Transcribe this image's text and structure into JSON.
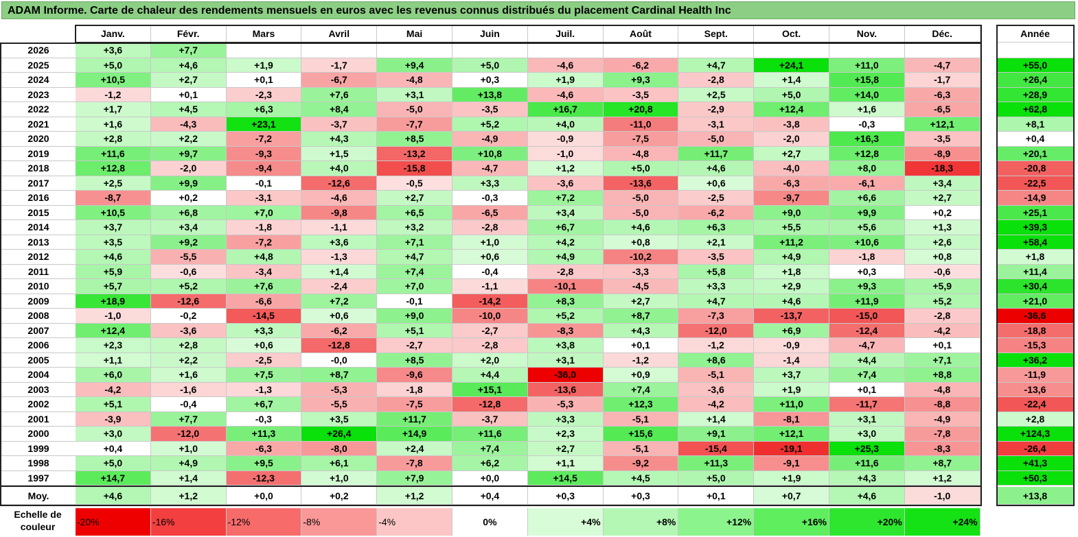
{
  "title": "ADAM Informe. Carte de chaleur des rendements mensuels en euros avec les revenus connus distribués du placement Cardinal Health Inc",
  "chart_data": {
    "type": "heatmap",
    "title": "ADAM Informe. Carte de chaleur des rendements mensuels en euros avec les revenus connus distribués du placement Cardinal Health Inc",
    "columns": [
      "Janv.",
      "Févr.",
      "Mars",
      "Avril",
      "Mai",
      "Juin",
      "Juil.",
      "Août",
      "Sept.",
      "Oct.",
      "Nov.",
      "Déc."
    ],
    "year_column_label": "Année",
    "rows": [
      {
        "year": "2026",
        "values": [
          "+3,6",
          "+7,7",
          "",
          "",
          "",
          "",
          "",
          "",
          "",
          "",
          "",
          ""
        ],
        "total": ""
      },
      {
        "year": "2025",
        "values": [
          "+5,0",
          "+4,6",
          "+1,9",
          "-1,7",
          "+9,4",
          "+5,0",
          "-4,6",
          "-6,2",
          "+4,7",
          "+24,1",
          "+11,0",
          "-4,7"
        ],
        "total": "+55,0"
      },
      {
        "year": "2024",
        "values": [
          "+10,5",
          "+2,7",
          "+0,1",
          "-6,7",
          "-4,8",
          "+0,3",
          "+1,9",
          "+9,3",
          "-2,8",
          "+1,4",
          "+15,8",
          "-1,7"
        ],
        "total": "+26,4"
      },
      {
        "year": "2023",
        "values": [
          "-1,2",
          "+0,1",
          "-2,3",
          "+7,6",
          "+3,1",
          "+13,8",
          "-4,6",
          "-3,5",
          "+2,5",
          "+5,0",
          "+14,0",
          "-6,3"
        ],
        "total": "+28,9"
      },
      {
        "year": "2022",
        "values": [
          "+1,7",
          "+4,5",
          "+6,3",
          "+8,4",
          "-5,0",
          "-3,5",
          "+16,7",
          "+20,8",
          "-2,9",
          "+12,4",
          "+1,6",
          "-6,5"
        ],
        "total": "+62,8"
      },
      {
        "year": "2021",
        "values": [
          "+1,6",
          "-4,3",
          "+23,1",
          "-3,7",
          "-7,7",
          "+5,2",
          "+4,0",
          "-11,0",
          "-3,1",
          "-3,8",
          "-0,3",
          "+12,1"
        ],
        "total": "+8,1"
      },
      {
        "year": "2020",
        "values": [
          "+2,8",
          "+2,2",
          "-7,2",
          "+4,3",
          "+8,5",
          "-4,9",
          "-0,9",
          "-7,5",
          "-5,0",
          "-2,0",
          "+16,3",
          "-3,5"
        ],
        "total": "+0,4"
      },
      {
        "year": "2019",
        "values": [
          "+11,6",
          "+9,7",
          "-9,3",
          "+1,5",
          "-13,2",
          "+10,8",
          "-1,0",
          "-4,8",
          "+11,7",
          "+2,7",
          "+12,8",
          "-8,9"
        ],
        "total": "+20,1"
      },
      {
        "year": "2018",
        "values": [
          "+12,8",
          "-2,0",
          "-9,4",
          "+4,0",
          "-15,8",
          "-4,7",
          "+1,2",
          "+5,0",
          "+4,6",
          "-4,0",
          "+8,0",
          "-18,3"
        ],
        "total": "-20,8"
      },
      {
        "year": "2017",
        "values": [
          "+2,5",
          "+9,9",
          "-0,1",
          "-12,6",
          "-0,5",
          "+3,3",
          "-3,6",
          "-13,6",
          "+0,6",
          "-6,3",
          "-6,1",
          "+3,4"
        ],
        "total": "-22,5"
      },
      {
        "year": "2016",
        "values": [
          "-8,7",
          "+0,2",
          "-3,1",
          "-4,6",
          "+2,7",
          "-0,3",
          "+7,2",
          "-5,0",
          "-2,5",
          "-9,7",
          "+6,6",
          "+2,7"
        ],
        "total": "-14,9"
      },
      {
        "year": "2015",
        "values": [
          "+10,5",
          "+6,8",
          "+7,0",
          "-9,8",
          "+6,5",
          "-6,5",
          "+3,4",
          "-5,0",
          "-6,2",
          "+9,0",
          "+9,9",
          "+0,2"
        ],
        "total": "+25,1"
      },
      {
        "year": "2014",
        "values": [
          "+3,7",
          "+3,4",
          "-1,8",
          "-1,1",
          "+3,2",
          "-2,8",
          "+6,7",
          "+4,6",
          "+6,3",
          "+5,5",
          "+5,6",
          "+1,3"
        ],
        "total": "+39,3"
      },
      {
        "year": "2013",
        "values": [
          "+3,5",
          "+9,2",
          "-7,2",
          "+3,6",
          "+7,1",
          "+1,0",
          "+4,2",
          "+0,8",
          "+2,1",
          "+11,2",
          "+10,6",
          "+2,6"
        ],
        "total": "+58,4"
      },
      {
        "year": "2012",
        "values": [
          "+4,6",
          "-5,5",
          "+4,8",
          "-1,3",
          "+4,7",
          "+0,6",
          "+4,9",
          "-10,2",
          "-3,5",
          "+4,9",
          "-1,8",
          "+0,8"
        ],
        "total": "+1,8"
      },
      {
        "year": "2011",
        "values": [
          "+5,9",
          "-0,6",
          "-3,4",
          "+1,4",
          "+7,4",
          "-0,4",
          "-2,8",
          "-3,3",
          "+5,8",
          "+1,8",
          "+0,3",
          "-0,6"
        ],
        "total": "+11,4"
      },
      {
        "year": "2010",
        "values": [
          "+5,7",
          "+5,2",
          "+7,6",
          "-2,4",
          "+7,0",
          "-1,1",
          "-10,1",
          "-4,5",
          "+3,3",
          "+2,9",
          "+9,3",
          "+5,9"
        ],
        "total": "+30,4"
      },
      {
        "year": "2009",
        "values": [
          "+18,9",
          "-12,6",
          "-6,6",
          "+7,2",
          "-0,1",
          "-14,2",
          "+8,3",
          "+2,7",
          "+4,7",
          "+4,6",
          "+11,9",
          "+5,2"
        ],
        "total": "+21,0"
      },
      {
        "year": "2008",
        "values": [
          "-1,0",
          "-0,2",
          "-14,5",
          "+0,6",
          "+9,0",
          "-10,0",
          "+5,2",
          "+8,7",
          "-7,3",
          "-13,7",
          "-15,0",
          "-2,8"
        ],
        "total": "-36,6"
      },
      {
        "year": "2007",
        "values": [
          "+12,4",
          "-3,6",
          "+3,3",
          "-6,2",
          "+5,1",
          "-2,7",
          "-8,3",
          "+4,3",
          "-12,0",
          "+6,9",
          "-12,4",
          "-4,2"
        ],
        "total": "-18,8"
      },
      {
        "year": "2006",
        "values": [
          "+2,3",
          "+2,8",
          "+0,6",
          "-12,8",
          "-2,7",
          "-2,8",
          "+3,8",
          "+0,1",
          "-1,2",
          "-0,9",
          "-4,7",
          "+0,1"
        ],
        "total": "-15,3"
      },
      {
        "year": "2005",
        "values": [
          "+1,1",
          "+2,2",
          "-2,5",
          "-0,0",
          "+8,5",
          "+2,0",
          "+3,1",
          "-1,2",
          "+8,6",
          "-1,4",
          "+4,4",
          "+7,1"
        ],
        "total": "+36,2"
      },
      {
        "year": "2004",
        "values": [
          "+6,0",
          "+1,6",
          "+7,5",
          "+8,7",
          "-9,6",
          "+4,4",
          "-36,0",
          "+0,9",
          "-5,1",
          "+3,7",
          "+7,4",
          "+8,8"
        ],
        "total": "-11,9"
      },
      {
        "year": "2003",
        "values": [
          "-4,2",
          "-1,6",
          "-1,3",
          "-5,3",
          "-1,8",
          "+15,1",
          "-13,6",
          "+7,4",
          "-3,6",
          "+1,9",
          "+0,1",
          "-4,8"
        ],
        "total": "-13,6"
      },
      {
        "year": "2002",
        "values": [
          "+5,1",
          "-0,4",
          "+6,7",
          "-5,5",
          "-7,5",
          "-12,8",
          "-5,3",
          "+12,3",
          "-4,2",
          "+11,0",
          "-11,7",
          "-8,8"
        ],
        "total": "-22,4"
      },
      {
        "year": "2001",
        "values": [
          "-3,9",
          "+7,7",
          "-0,3",
          "+3,5",
          "+11,7",
          "-3,7",
          "+3,3",
          "-5,1",
          "+1,4",
          "-8,1",
          "+3,1",
          "-4,9"
        ],
        "total": "+2,8"
      },
      {
        "year": "2000",
        "values": [
          "+3,0",
          "-12,0",
          "+11,3",
          "+26,4",
          "+14,9",
          "+11,6",
          "+2,3",
          "+15,6",
          "+9,1",
          "+12,1",
          "+3,0",
          "-7,8"
        ],
        "total": "+124,3"
      },
      {
        "year": "1999",
        "values": [
          "+0,4",
          "+1,0",
          "-6,3",
          "-8,0",
          "+2,4",
          "+7,4",
          "+2,7",
          "-5,1",
          "-15,4",
          "-19,1",
          "+25,3",
          "-8,3"
        ],
        "total": "-26,4"
      },
      {
        "year": "1998",
        "values": [
          "+5,0",
          "+4,9",
          "+9,5",
          "+6,1",
          "-7,8",
          "+6,2",
          "+1,1",
          "-9,2",
          "+11,3",
          "-9,1",
          "+11,6",
          "+8,7"
        ],
        "total": "+41,3"
      },
      {
        "year": "1997",
        "values": [
          "+14,7",
          "+1,4",
          "-12,3",
          "+1,0",
          "+7,9",
          "+0,0",
          "+14,5",
          "+4,5",
          "+5,0",
          "+1,9",
          "+4,3",
          "+1,2"
        ],
        "total": "+50,3"
      }
    ],
    "average": {
      "label": "Moy.",
      "values": [
        "+4,6",
        "+1,2",
        "+0,0",
        "+0,2",
        "+1,2",
        "+0,4",
        "+0,3",
        "+0,3",
        "+0,1",
        "+0,7",
        "+4,6",
        "-1,0"
      ],
      "total": "+13,8"
    },
    "legend": {
      "label": "Echelle de couleur",
      "steps": [
        "-20%",
        "-16%",
        "-12%",
        "-8%",
        "-4%",
        "0%",
        "+4%",
        "+8%",
        "+12%",
        "+16%",
        "+20%",
        "+24%"
      ],
      "colors": [
        "#ee0000",
        "#f33f3f",
        "#f76b6b",
        "#fa9797",
        "#fdc6c6",
        "#ffffff",
        "#d8fcd8",
        "#b4f7b4",
        "#8cf48c",
        "#5eee5e",
        "#2ee62e",
        "#14e214"
      ]
    }
  }
}
